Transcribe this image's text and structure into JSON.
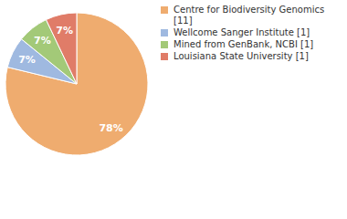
{
  "chart_data": {
    "type": "pie",
    "categories": [
      "Centre for Biodiversity Genomics [11]",
      "Wellcome Sanger Institute [1]",
      "Mined from GenBank, NCBI [1]",
      "Louisiana State University [1]"
    ],
    "values": [
      78,
      7,
      7,
      7
    ],
    "value_labels": [
      "78%",
      "7%",
      "7%",
      "7%"
    ],
    "colors": [
      "#efac6f",
      "#9fb9e0",
      "#a3c978",
      "#e07c68"
    ],
    "data_labels": true,
    "legend": "right"
  }
}
